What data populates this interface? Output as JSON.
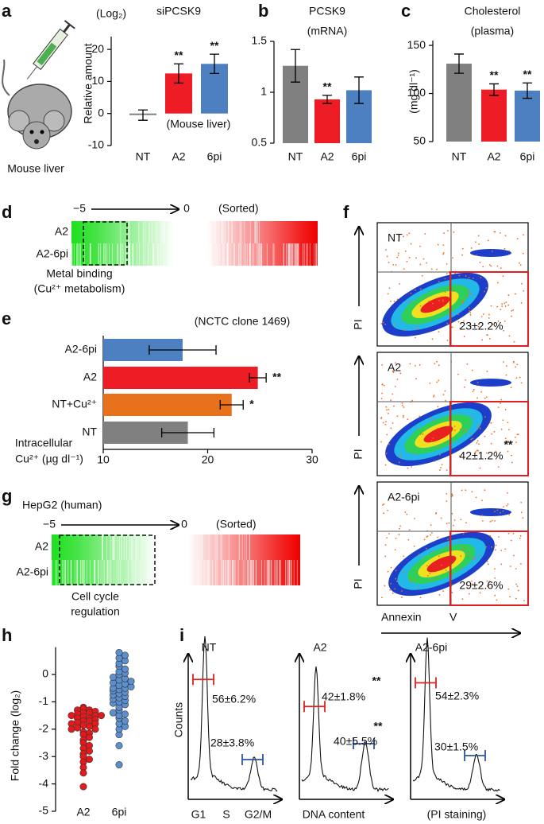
{
  "chart_data": [
    {
      "panel": "a",
      "type": "bar",
      "title": "siPCSK9",
      "unit": "(Log₂)",
      "ylabel": "Relative amount",
      "annotation": "(Mouse liver)",
      "image_label": "Mouse liver",
      "categories": [
        "NT",
        "A2",
        "6pi"
      ],
      "category_colors": [
        "#000000",
        "#e8141c",
        "#4a7fc0"
      ],
      "values": [
        -0.5,
        12.5,
        15.5
      ],
      "errors": [
        1.6,
        3,
        3
      ],
      "colors": [
        "#808080",
        "#ee1c25",
        "#4d80c1"
      ],
      "significance": [
        null,
        "**",
        "**"
      ],
      "ylim": [
        -10,
        24
      ],
      "yticks": [
        -10,
        0,
        10,
        20
      ]
    },
    {
      "panel": "b",
      "type": "bar",
      "title": "PCSK9",
      "subtitle": "(mRNA)",
      "categories": [
        "NT",
        "A2",
        "6pi"
      ],
      "category_colors": [
        "#000000",
        "#e8141c",
        "#4a7fc0"
      ],
      "values": [
        1.26,
        0.93,
        1.02
      ],
      "errors": [
        0.16,
        0.04,
        0.13
      ],
      "colors": [
        "#808080",
        "#ee1c25",
        "#4d80c1"
      ],
      "significance": [
        null,
        "**",
        null
      ],
      "ylim": [
        0.5,
        1.5
      ],
      "yticks": [
        0.5,
        1,
        1.5
      ]
    },
    {
      "panel": "c",
      "type": "bar",
      "title": "Cholesterol",
      "subtitle": "(plasma)",
      "ylabel": "(mg dl⁻¹)",
      "categories": [
        "NT",
        "A2",
        "6pi"
      ],
      "category_colors": [
        "#000000",
        "#e8141c",
        "#4a7fc0"
      ],
      "values": [
        131,
        104,
        103
      ],
      "errors": [
        10,
        6,
        8
      ],
      "colors": [
        "#808080",
        "#ee1c25",
        "#4d80c1"
      ],
      "significance": [
        null,
        "**",
        "**"
      ],
      "ylim": [
        50,
        155
      ],
      "yticks": [
        50,
        100,
        150
      ]
    },
    {
      "panel": "e",
      "type": "hbar",
      "title": "(NCTC clone 1469)",
      "xlabel": [
        "Intracellular",
        "Cu²⁺ (µg dl⁻¹)"
      ],
      "categories": [
        "A2-6pi",
        "A2",
        "NT+Cu²⁺",
        "NT"
      ],
      "category_colors": [
        "#2f5597",
        "#e8141c",
        "#e8711b",
        "#000000"
      ],
      "values": [
        17.6,
        24.8,
        22.3,
        18.1
      ],
      "errors": [
        3.2,
        0.8,
        1.1,
        2.5
      ],
      "colors": [
        "#4d80c1",
        "#ee1c25",
        "#e8711b",
        "#808080"
      ],
      "significance": [
        null,
        "**",
        "*",
        null
      ],
      "xlim": [
        10,
        30
      ],
      "xticks": [
        10,
        20,
        30
      ]
    },
    {
      "panel": "h",
      "type": "dot",
      "ylabel": "Fold change (log₂)",
      "categories": [
        "A2",
        "6pi"
      ],
      "category_colors": [
        "#e8141c",
        "#2f5597"
      ],
      "colors": [
        "#e31a1c",
        "#5b8fd0"
      ],
      "values": [
        [
          -1.2,
          -1.25,
          -1.3,
          -1.3,
          -1.35,
          -1.4,
          -1.4,
          -1.45,
          -1.5,
          -1.5,
          -1.5,
          -1.55,
          -1.6,
          -1.6,
          -1.65,
          -1.7,
          -1.7,
          -1.75,
          -1.8,
          -1.8,
          -1.85,
          -1.9,
          -1.95,
          -2.0,
          -2.0,
          -2.1,
          -2.15,
          -2.2,
          -2.3,
          -2.4,
          -2.5,
          -2.6,
          -2.7,
          -2.8,
          -2.9,
          -3.0,
          -3.1,
          -3.2,
          -3.4,
          -3.6,
          -4.1
        ],
        [
          -3.3,
          -2.6,
          -2.2,
          -2.0,
          -1.9,
          -1.8,
          -1.7,
          -1.6,
          -1.5,
          -1.45,
          -1.4,
          -1.3,
          -1.2,
          -1.1,
          -1.05,
          -1.0,
          -0.95,
          -0.9,
          -0.85,
          -0.8,
          -0.75,
          -0.7,
          -0.65,
          -0.6,
          -0.55,
          -0.5,
          -0.5,
          -0.45,
          -0.4,
          -0.35,
          -0.3,
          -0.25,
          -0.2,
          -0.15,
          -0.1,
          0,
          0.05,
          0.1,
          0.2,
          0.3,
          0.4,
          0.5,
          0.6,
          0.7,
          0.8
        ]
      ],
      "ylim": [
        -5,
        1
      ],
      "yticks": [
        -5,
        -4,
        -3,
        -2,
        -1,
        0
      ]
    }
  ],
  "heatmaps": [
    {
      "panel": "d",
      "scale_min": "−5",
      "scale_max": "0",
      "note": "(Sorted)",
      "rows": [
        "A2",
        "A2-6pi"
      ],
      "caption": [
        "Metal binding",
        "(Cu²⁺ metabolism)"
      ]
    },
    {
      "panel": "g",
      "header": "HepG2 (human)",
      "scale_min": "−5",
      "scale_max": "0",
      "note": "(Sorted)",
      "rows": [
        "A2",
        "A2-6pi"
      ],
      "caption": [
        "Cell cycle",
        "regulation"
      ]
    }
  ],
  "flow_cytometry": {
    "panel": "f",
    "y_label": "PI",
    "x_label": [
      "Annexin",
      "V"
    ],
    "plots": [
      {
        "name": "NT",
        "percent": "23±2.2%"
      },
      {
        "name": "A2",
        "percent": "42±1.2%",
        "significance": "**"
      },
      {
        "name": "A2-6pi",
        "percent": "29±2.6%"
      }
    ]
  },
  "cell_cycle": {
    "panel": "i",
    "y_label": "Counts",
    "x_labels": [
      "G1",
      "S",
      "G2/M"
    ],
    "x_title": "DNA content",
    "x_note": "(PI staining)",
    "plots": [
      {
        "name": "NT",
        "g1": "56±6.2%",
        "g2m": "28±3.8%"
      },
      {
        "name": "A2",
        "g1": "42±1.8%",
        "g1_significance": "**",
        "g2m": "40±5.5%",
        "g2m_significance": "**"
      },
      {
        "name": "A2-6pi",
        "g1": "54±2.3%",
        "g2m": "30±1.5%"
      }
    ]
  }
}
